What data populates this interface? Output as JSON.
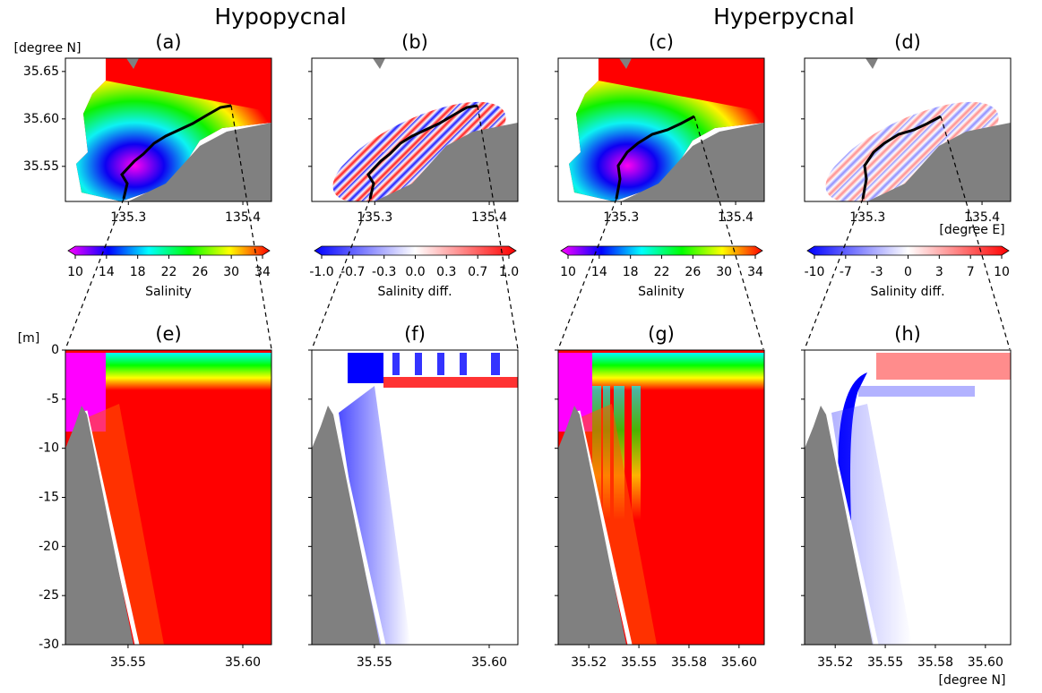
{
  "figure": {
    "headings": [
      "Hypopycnal",
      "Hyperpycnal"
    ],
    "map_y_unit": "[degree N]",
    "map_x_unit": "[degree E]",
    "section_y_unit": "[m]",
    "section_x_unit": "[degree N]"
  },
  "chart_data": [
    {
      "type": "map",
      "title": "(a)",
      "xlim": [
        135.245,
        135.425
      ],
      "xticks": [
        135.3,
        135.4
      ],
      "ylim": [
        35.513,
        35.664
      ],
      "yticks": [
        35.55,
        {
          "value": 35.6,
          "label": "35.60"
        },
        35.65
      ],
      "colorbar": {
        "label": "Salinity",
        "lim": [
          10,
          34
        ],
        "ticks": [
          10,
          14,
          18,
          22,
          26,
          30,
          34
        ],
        "colormap": [
          "#ff00ff",
          "#0000ff",
          "#00ffff",
          "#00ff00",
          "#ffff00",
          "#ff0000"
        ]
      }
    },
    {
      "type": "map",
      "title": "(b)",
      "xlim": [
        135.245,
        135.425
      ],
      "xticks": [
        135.3,
        135.4
      ],
      "ylim": [
        35.513,
        35.664
      ],
      "yticks": [
        35.55,
        35.6,
        35.65
      ],
      "ytick_labels": false,
      "colorbar": {
        "label": "Salinity diff.",
        "lim": [
          -1,
          1
        ],
        "ticks": [
          {
            "value": -1,
            "label": "-1.0"
          },
          {
            "value": -0.667,
            "label": "-0.7"
          },
          {
            "value": -0.333,
            "label": "-0.3"
          },
          {
            "value": 0,
            "label": "0.0"
          },
          {
            "value": 0.333,
            "label": "0.3"
          },
          {
            "value": 0.667,
            "label": "0.7"
          },
          {
            "value": 1,
            "label": "1.0"
          }
        ],
        "colormap": [
          "#0000ff",
          "#ffffff",
          "#ff0000"
        ]
      }
    },
    {
      "type": "map",
      "title": "(c)",
      "xlim": [
        135.245,
        135.425
      ],
      "xticks": [
        135.3,
        135.4
      ],
      "ylim": [
        35.513,
        35.664
      ],
      "yticks": [
        35.55,
        35.6,
        35.65
      ],
      "ytick_labels": false,
      "colorbar": {
        "label": "Salinity",
        "lim": [
          10,
          34
        ],
        "ticks": [
          10,
          14,
          18,
          22,
          26,
          30,
          34
        ],
        "colormap": [
          "#ff00ff",
          "#0000ff",
          "#00ffff",
          "#00ff00",
          "#ffff00",
          "#ff0000"
        ]
      }
    },
    {
      "type": "map",
      "title": "(d)",
      "xlim": [
        135.245,
        135.425
      ],
      "xticks": [
        135.3,
        135.4
      ],
      "ylim": [
        35.513,
        35.664
      ],
      "yticks": [
        35.55,
        35.6,
        35.65
      ],
      "ytick_labels": false,
      "colorbar": {
        "label": "Salinity diff.",
        "lim": [
          -10,
          10
        ],
        "ticks": [
          -10,
          {
            "value": -6.667,
            "label": "-7"
          },
          {
            "value": -3.333,
            "label": "-3"
          },
          0,
          {
            "value": 3.333,
            "label": "3"
          },
          {
            "value": 6.667,
            "label": "7"
          },
          10
        ],
        "colormap": [
          "#0000ff",
          "#ffffff",
          "#ff0000"
        ]
      }
    },
    {
      "type": "section",
      "title": "(e)",
      "xlim": [
        35.5227,
        35.6125
      ],
      "xticks": [
        35.55,
        {
          "value": 35.6,
          "label": "35.60"
        }
      ],
      "ylim": [
        -30,
        0
      ],
      "yticks": [
        -30,
        -25,
        -20,
        -15,
        -10,
        -5,
        0
      ]
    },
    {
      "type": "section",
      "title": "(f)",
      "xlim": [
        35.5227,
        35.6125
      ],
      "xticks": [
        35.55,
        {
          "value": 35.6,
          "label": "35.60"
        }
      ],
      "ylim": [
        -30,
        0
      ],
      "yticks": [
        -30,
        -25,
        -20,
        -15,
        -10,
        -5,
        0
      ],
      "ytick_labels": false
    },
    {
      "type": "section",
      "title": "(g)",
      "xlim": [
        35.5097,
        35.6126
      ],
      "xticks": [
        {
          "value": 35.525,
          "label": "35.52"
        },
        35.55,
        {
          "value": 35.575,
          "label": "35.58"
        },
        {
          "value": 35.6,
          "label": "35.60"
        }
      ],
      "ylim": [
        -30,
        0
      ],
      "yticks": [
        -30,
        -25,
        -20,
        -15,
        -10,
        -5,
        0
      ],
      "ytick_labels": false
    },
    {
      "type": "section",
      "title": "(h)",
      "xlim": [
        35.5097,
        35.6126
      ],
      "xticks": [
        {
          "value": 35.525,
          "label": "35.52"
        },
        35.55,
        {
          "value": 35.575,
          "label": "35.58"
        },
        {
          "value": 35.6,
          "label": "35.60"
        }
      ],
      "ylim": [
        -30,
        0
      ],
      "yticks": [
        -30,
        -25,
        -20,
        -15,
        -10,
        -5,
        0
      ],
      "ytick_labels": false
    }
  ]
}
